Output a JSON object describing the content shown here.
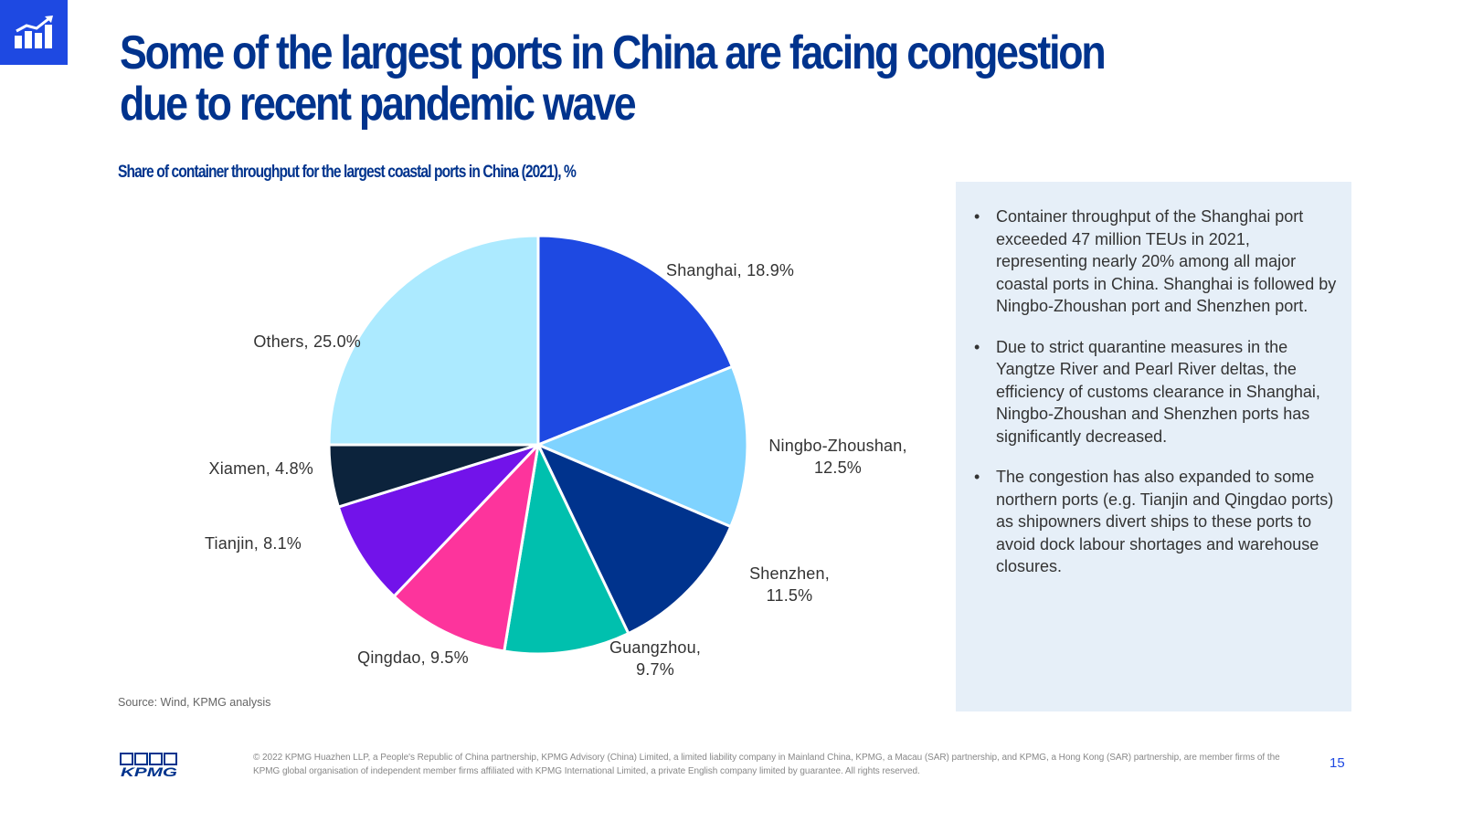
{
  "header": {
    "title": "Some of the largest ports in China are facing congestion due to recent pandemic wave"
  },
  "chart_data": {
    "type": "pie",
    "title": "Share of container throughput for the largest coastal ports in China (2021), %",
    "start_angle_deg": 0,
    "direction": "clockwise",
    "slices": [
      {
        "name": "Shanghai",
        "value": 18.9,
        "label": "Shanghai, 18.9%",
        "color": "#1E49E2"
      },
      {
        "name": "Ningbo-Zhoushan",
        "value": 12.5,
        "label": "Ningbo-Zhoushan,\n12.5%",
        "color": "#7FD3FF"
      },
      {
        "name": "Shenzhen",
        "value": 11.5,
        "label": "Shenzhen,\n11.5%",
        "color": "#00338D"
      },
      {
        "name": "Guangzhou",
        "value": 9.7,
        "label": "Guangzhou,\n9.7%",
        "color": "#00C0AE"
      },
      {
        "name": "Qingdao",
        "value": 9.5,
        "label": "Qingdao, 9.5%",
        "color": "#FD349C"
      },
      {
        "name": "Tianjin",
        "value": 8.1,
        "label": "Tianjin, 8.1%",
        "color": "#7213EA"
      },
      {
        "name": "Xiamen",
        "value": 4.8,
        "label": "Xiamen, 4.8%",
        "color": "#0C233C"
      },
      {
        "name": "Others",
        "value": 25.0,
        "label": "Others, 25.0%",
        "color": "#ACEAFF"
      }
    ]
  },
  "source": "Source: Wind, KPMG analysis",
  "panel": {
    "bullets": [
      "Container throughput of the Shanghai port exceeded 47 million TEUs in 2021, representing nearly 20% among all major coastal ports in China. Shanghai is followed by Ningbo-Zhoushan port and Shenzhen port.",
      "Due to strict quarantine measures in the Yangtze River and Pearl River deltas, the efficiency of customs clearance in Shanghai, Ningbo-Zhoushan and Shenzhen ports has significantly decreased.",
      "The congestion has also expanded to some northern ports (e.g. Tianjin and Qingdao ports) as shipowners divert ships to these ports to avoid dock labour shortages and warehouse closures."
    ]
  },
  "footer": {
    "logo_text": "KPMG",
    "copyright": "© 2022 KPMG Huazhen LLP, a People's Republic of China partnership, KPMG Advisory (China) Limited, a limited liability company in Mainland China, KPMG, a Macau (SAR) partnership, and KPMG, a Hong Kong (SAR) partnership, are member firms of the KPMG global organisation of independent member firms affiliated with KPMG International Limited, a private English company limited by guarantee. All rights reserved.",
    "page_number": "15"
  },
  "colors": {
    "brand_blue": "#1E49E2",
    "dark_blue": "#00338D",
    "panel_bg": "#E6EFF8"
  },
  "icons": {
    "corner_badge": "bar-chart-growth-icon"
  }
}
